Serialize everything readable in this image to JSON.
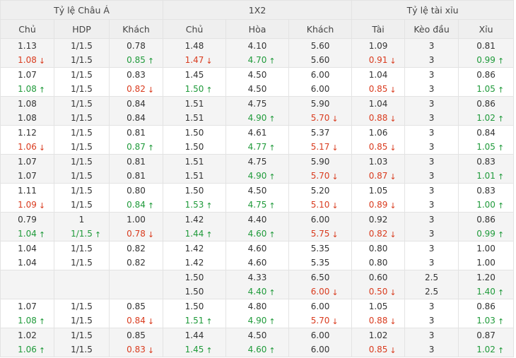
{
  "headers": {
    "groups": [
      "Tỷ lệ Châu Á",
      "1X2",
      "Tỷ lệ tài xỉu"
    ],
    "columns": [
      "Chủ",
      "HDP",
      "Khách",
      "Chủ",
      "Hòa",
      "Khách",
      "Tài",
      "Kèo đầu",
      "Xỉu"
    ]
  },
  "rows": [
    [
      {
        "top": "1.13",
        "bot": "1.08",
        "dir": "down"
      },
      {
        "top": "1/1.5",
        "bot": "1/1.5",
        "dir": ""
      },
      {
        "top": "0.78",
        "bot": "0.85",
        "dir": "up"
      },
      {
        "top": "1.48",
        "bot": "1.47",
        "dir": "down"
      },
      {
        "top": "4.10",
        "bot": "4.70",
        "dir": "up"
      },
      {
        "top": "5.60",
        "bot": "5.60",
        "dir": ""
      },
      {
        "top": "1.09",
        "bot": "0.91",
        "dir": "down"
      },
      {
        "top": "3",
        "bot": "3",
        "dir": ""
      },
      {
        "top": "0.81",
        "bot": "0.99",
        "dir": "up"
      }
    ],
    [
      {
        "top": "1.07",
        "bot": "1.08",
        "dir": "up"
      },
      {
        "top": "1/1.5",
        "bot": "1/1.5",
        "dir": ""
      },
      {
        "top": "0.83",
        "bot": "0.82",
        "dir": "down"
      },
      {
        "top": "1.45",
        "bot": "1.50",
        "dir": "up"
      },
      {
        "top": "4.50",
        "bot": "4.50",
        "dir": ""
      },
      {
        "top": "6.00",
        "bot": "6.00",
        "dir": ""
      },
      {
        "top": "1.04",
        "bot": "0.85",
        "dir": "down"
      },
      {
        "top": "3",
        "bot": "3",
        "dir": ""
      },
      {
        "top": "0.86",
        "bot": "1.05",
        "dir": "up"
      }
    ],
    [
      {
        "top": "1.08",
        "bot": "1.08",
        "dir": ""
      },
      {
        "top": "1/1.5",
        "bot": "1/1.5",
        "dir": ""
      },
      {
        "top": "0.84",
        "bot": "0.84",
        "dir": ""
      },
      {
        "top": "1.51",
        "bot": "1.51",
        "dir": ""
      },
      {
        "top": "4.75",
        "bot": "4.90",
        "dir": "up"
      },
      {
        "top": "5.90",
        "bot": "5.70",
        "dir": "down"
      },
      {
        "top": "1.04",
        "bot": "0.88",
        "dir": "down"
      },
      {
        "top": "3",
        "bot": "3",
        "dir": ""
      },
      {
        "top": "0.86",
        "bot": "1.02",
        "dir": "up"
      }
    ],
    [
      {
        "top": "1.12",
        "bot": "1.06",
        "dir": "down"
      },
      {
        "top": "1/1.5",
        "bot": "1/1.5",
        "dir": ""
      },
      {
        "top": "0.81",
        "bot": "0.87",
        "dir": "up"
      },
      {
        "top": "1.50",
        "bot": "1.50",
        "dir": ""
      },
      {
        "top": "4.61",
        "bot": "4.77",
        "dir": "up"
      },
      {
        "top": "5.37",
        "bot": "5.17",
        "dir": "down"
      },
      {
        "top": "1.06",
        "bot": "0.85",
        "dir": "down"
      },
      {
        "top": "3",
        "bot": "3",
        "dir": ""
      },
      {
        "top": "0.84",
        "bot": "1.05",
        "dir": "up"
      }
    ],
    [
      {
        "top": "1.07",
        "bot": "1.07",
        "dir": ""
      },
      {
        "top": "1/1.5",
        "bot": "1/1.5",
        "dir": ""
      },
      {
        "top": "0.81",
        "bot": "0.81",
        "dir": ""
      },
      {
        "top": "1.51",
        "bot": "1.51",
        "dir": ""
      },
      {
        "top": "4.75",
        "bot": "4.90",
        "dir": "up"
      },
      {
        "top": "5.90",
        "bot": "5.70",
        "dir": "down"
      },
      {
        "top": "1.03",
        "bot": "0.87",
        "dir": "down"
      },
      {
        "top": "3",
        "bot": "3",
        "dir": ""
      },
      {
        "top": "0.83",
        "bot": "1.01",
        "dir": "up"
      }
    ],
    [
      {
        "top": "1.11",
        "bot": "1.09",
        "dir": "down"
      },
      {
        "top": "1/1.5",
        "bot": "1/1.5",
        "dir": ""
      },
      {
        "top": "0.80",
        "bot": "0.84",
        "dir": "up"
      },
      {
        "top": "1.50",
        "bot": "1.53",
        "dir": "up"
      },
      {
        "top": "4.50",
        "bot": "4.75",
        "dir": "up"
      },
      {
        "top": "5.20",
        "bot": "5.10",
        "dir": "down"
      },
      {
        "top": "1.05",
        "bot": "0.89",
        "dir": "down"
      },
      {
        "top": "3",
        "bot": "3",
        "dir": ""
      },
      {
        "top": "0.83",
        "bot": "1.00",
        "dir": "up"
      }
    ],
    [
      {
        "top": "0.79",
        "bot": "1.04",
        "dir": "up"
      },
      {
        "top": "1",
        "bot": "1/1.5",
        "dir": "up"
      },
      {
        "top": "1.00",
        "bot": "0.78",
        "dir": "down"
      },
      {
        "top": "1.42",
        "bot": "1.44",
        "dir": "up"
      },
      {
        "top": "4.40",
        "bot": "4.60",
        "dir": "up"
      },
      {
        "top": "6.00",
        "bot": "5.75",
        "dir": "down"
      },
      {
        "top": "0.92",
        "bot": "0.82",
        "dir": "down"
      },
      {
        "top": "3",
        "bot": "3",
        "dir": ""
      },
      {
        "top": "0.86",
        "bot": "0.99",
        "dir": "up"
      }
    ],
    [
      {
        "top": "1.04",
        "bot": "1.04",
        "dir": ""
      },
      {
        "top": "1/1.5",
        "bot": "1/1.5",
        "dir": ""
      },
      {
        "top": "0.82",
        "bot": "0.82",
        "dir": ""
      },
      {
        "top": "1.42",
        "bot": "1.42",
        "dir": ""
      },
      {
        "top": "4.60",
        "bot": "4.60",
        "dir": ""
      },
      {
        "top": "5.35",
        "bot": "5.35",
        "dir": ""
      },
      {
        "top": "0.80",
        "bot": "0.80",
        "dir": ""
      },
      {
        "top": "3",
        "bot": "3",
        "dir": ""
      },
      {
        "top": "1.00",
        "bot": "1.00",
        "dir": ""
      }
    ],
    [
      {
        "top": "",
        "bot": "",
        "dir": ""
      },
      {
        "top": "",
        "bot": "",
        "dir": ""
      },
      {
        "top": "",
        "bot": "",
        "dir": ""
      },
      {
        "top": "1.50",
        "bot": "1.50",
        "dir": ""
      },
      {
        "top": "4.33",
        "bot": "4.40",
        "dir": "up"
      },
      {
        "top": "6.50",
        "bot": "6.00",
        "dir": "down"
      },
      {
        "top": "0.60",
        "bot": "0.50",
        "dir": "down"
      },
      {
        "top": "2.5",
        "bot": "2.5",
        "dir": ""
      },
      {
        "top": "1.20",
        "bot": "1.40",
        "dir": "up"
      }
    ],
    [
      {
        "top": "1.07",
        "bot": "1.08",
        "dir": "up"
      },
      {
        "top": "1/1.5",
        "bot": "1/1.5",
        "dir": ""
      },
      {
        "top": "0.85",
        "bot": "0.84",
        "dir": "down"
      },
      {
        "top": "1.50",
        "bot": "1.51",
        "dir": "up"
      },
      {
        "top": "4.80",
        "bot": "4.90",
        "dir": "up"
      },
      {
        "top": "6.00",
        "bot": "5.70",
        "dir": "down"
      },
      {
        "top": "1.05",
        "bot": "0.88",
        "dir": "down"
      },
      {
        "top": "3",
        "bot": "3",
        "dir": ""
      },
      {
        "top": "0.86",
        "bot": "1.03",
        "dir": "up"
      }
    ],
    [
      {
        "top": "1.02",
        "bot": "1.06",
        "dir": "up"
      },
      {
        "top": "1/1.5",
        "bot": "1/1.5",
        "dir": ""
      },
      {
        "top": "0.85",
        "bot": "0.83",
        "dir": "down"
      },
      {
        "top": "1.44",
        "bot": "1.45",
        "dir": "up"
      },
      {
        "top": "4.50",
        "bot": "4.60",
        "dir": "up"
      },
      {
        "top": "6.00",
        "bot": "6.00",
        "dir": ""
      },
      {
        "top": "1.02",
        "bot": "0.85",
        "dir": "down"
      },
      {
        "top": "3",
        "bot": "3",
        "dir": ""
      },
      {
        "top": "0.87",
        "bot": "1.02",
        "dir": "up"
      }
    ]
  ],
  "icons": {
    "up": "arrow-up-icon",
    "down": "arrow-down-icon"
  },
  "colors": {
    "up": "#1f9a3a",
    "down": "#d93b1e",
    "header_bg": "#efefef",
    "alt_row_bg": "#f4f4f4",
    "border": "#e3e3e3"
  }
}
